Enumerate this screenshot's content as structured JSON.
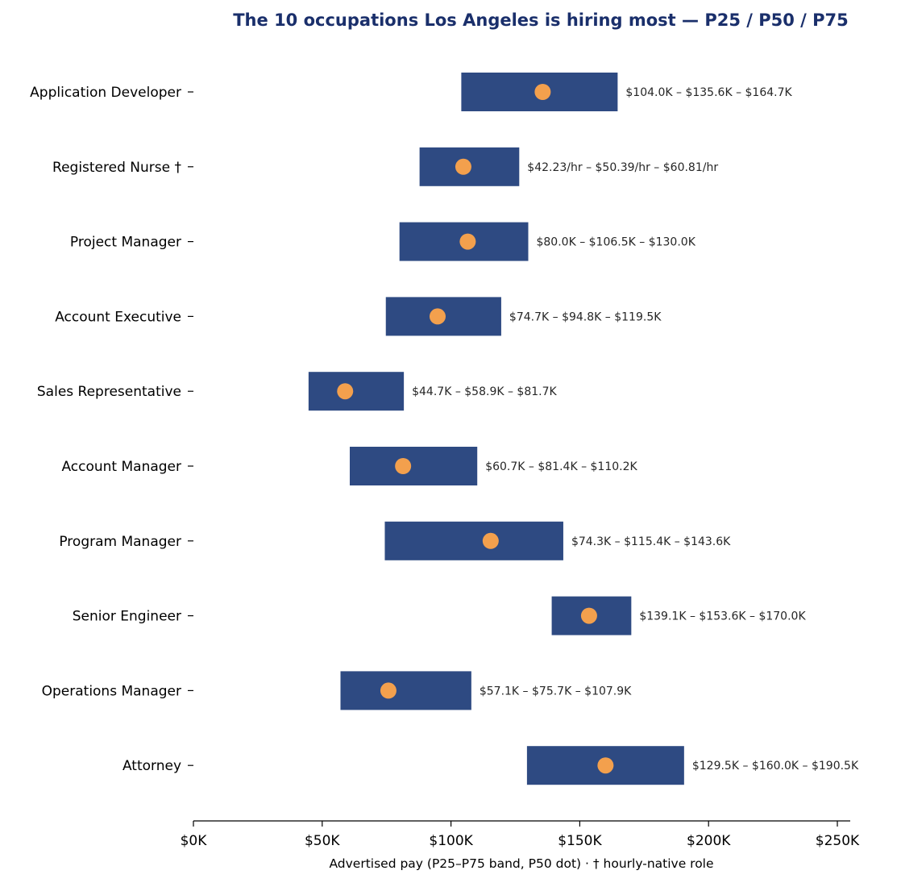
{
  "chart_data": {
    "type": "bar",
    "title": "The 10 occupations Los Angeles is hiring most — P25 / P50 / P75",
    "xlabel": "Advertised pay (P25–P75 band, P50 dot) · † hourly-native role",
    "ylabel": "",
    "xlim": [
      0,
      255000
    ],
    "x_ticks": [
      {
        "value": 0,
        "label": "$0K"
      },
      {
        "value": 50000,
        "label": "$50K"
      },
      {
        "value": 100000,
        "label": "$100K"
      },
      {
        "value": 150000,
        "label": "$150K"
      },
      {
        "value": 200000,
        "label": "$200K"
      },
      {
        "value": 250000,
        "label": "$250K"
      }
    ],
    "grid": false,
    "colors": {
      "band": "#2e4a82",
      "median": "#f3a04d",
      "title": "#1a2f6b"
    },
    "rows": [
      {
        "label": "Application Developer",
        "p25": 104000,
        "p50": 135600,
        "p75": 164700,
        "value_label": "$104.0K – $135.6K – $164.7K"
      },
      {
        "label": "Registered Nurse †",
        "p25": 87800,
        "p50": 104800,
        "p75": 126500,
        "value_label": "$42.23/hr – $50.39/hr – $60.81/hr"
      },
      {
        "label": "Project Manager",
        "p25": 80000,
        "p50": 106500,
        "p75": 130000,
        "value_label": "$80.0K – $106.5K – $130.0K"
      },
      {
        "label": "Account Executive",
        "p25": 74700,
        "p50": 94800,
        "p75": 119500,
        "value_label": "$74.7K – $94.8K – $119.5K"
      },
      {
        "label": "Sales Representative",
        "p25": 44700,
        "p50": 58900,
        "p75": 81700,
        "value_label": "$44.7K – $58.9K – $81.7K"
      },
      {
        "label": "Account Manager",
        "p25": 60700,
        "p50": 81400,
        "p75": 110200,
        "value_label": "$60.7K – $81.4K – $110.2K"
      },
      {
        "label": "Program Manager",
        "p25": 74300,
        "p50": 115400,
        "p75": 143600,
        "value_label": "$74.3K – $115.4K – $143.6K"
      },
      {
        "label": "Senior Engineer",
        "p25": 139100,
        "p50": 153600,
        "p75": 170000,
        "value_label": "$139.1K – $153.6K – $170.0K"
      },
      {
        "label": "Operations Manager",
        "p25": 57100,
        "p50": 75700,
        "p75": 107900,
        "value_label": "$57.1K – $75.7K – $107.9K"
      },
      {
        "label": "Attorney",
        "p25": 129500,
        "p50": 160000,
        "p75": 190500,
        "value_label": "$129.5K – $160.0K – $190.5K"
      }
    ]
  }
}
